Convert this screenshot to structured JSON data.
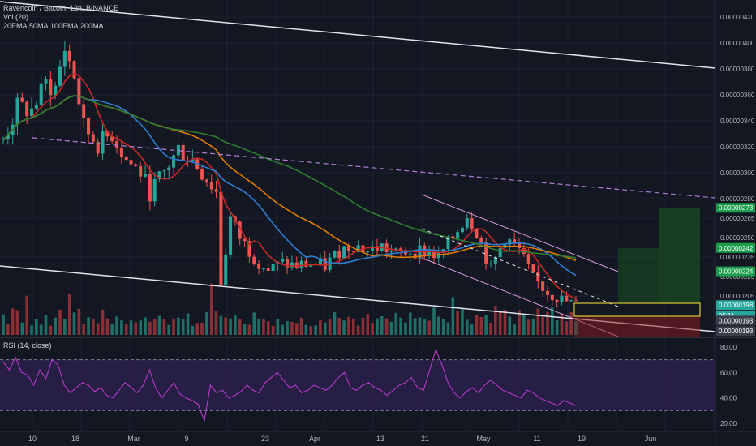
{
  "header": {
    "title": "Ravencoin / Bitcoin, 12h, BINANCE",
    "volume_label": "Vol (20)",
    "indicators_label": "20EMA,50MA,100EMA,200MA",
    "rsi_label": "RSI (14, close)"
  },
  "colors": {
    "background": "#131722",
    "up": "#26a69a",
    "down": "#ef5350",
    "ema20": "#c62828",
    "ma50": "#2e7dd1",
    "ema100": "#e07b00",
    "ma200": "#2e7d32",
    "rsi": "#b53ac6",
    "rsi_band": "#2a1f4a",
    "trendline": "#e0e3eb",
    "channel": "#d59bd9",
    "target_box": "#ffeb3b",
    "target_zone": "#1b5e20",
    "stop_zone": "#8e1b1b"
  },
  "chart_data": {
    "type": "candlestick",
    "x_axis_ticks": [
      "10",
      "18",
      "Mar",
      "9",
      "23",
      "Apr",
      "13",
      "21",
      "May",
      "11",
      "19",
      "Jun"
    ],
    "price_axis": {
      "ylim": [
        1.75e-06,
        4.3e-06
      ],
      "ticks": [
        "0.00000420",
        "0.00000400",
        "0.00000380",
        "0.00000360",
        "0.00000340",
        "0.00000320",
        "0.00000300",
        "0.00000280",
        "0.00000265",
        "0.00000250",
        "0.00000235",
        "0.00000220",
        "0.00000205"
      ],
      "tags": [
        {
          "label": "0.00000273",
          "value": 2.73e-06,
          "color": "#1b9e4b"
        },
        {
          "label": "0.00000242",
          "value": 2.42e-06,
          "color": "#1b9e4b"
        },
        {
          "label": "0.00000224",
          "value": 2.24e-06,
          "color": "#1b9e4b"
        },
        {
          "label": "0.00000198",
          "value": 1.98e-06,
          "color": "#26a69a"
        },
        {
          "label": "05:11",
          "value": 1.9e-06,
          "color": "#26a69a"
        },
        {
          "label": "0.00000193",
          "value": 1.86e-06,
          "color": "#3a3e4a"
        },
        {
          "label": "0.00000193",
          "value": 1.78e-06,
          "color": "#3a3e4a"
        }
      ]
    },
    "close_path": [
      [
        0,
        3.25e-06
      ],
      [
        3,
        3.5e-06
      ],
      [
        6,
        3.48e-06
      ],
      [
        9,
        3.68e-06
      ],
      [
        11,
        3.65e-06
      ],
      [
        13,
        3.96e-06
      ],
      [
        15,
        3.75e-06
      ],
      [
        17,
        3.35e-06
      ],
      [
        20,
        3.22e-06
      ],
      [
        23,
        3.3e-06
      ],
      [
        26,
        3.1e-06
      ],
      [
        29,
        3e-06
      ],
      [
        31,
        2.85e-06
      ],
      [
        34,
        3e-06
      ],
      [
        37,
        3.18e-06
      ],
      [
        40,
        3.1e-06
      ],
      [
        43,
        2.95e-06
      ],
      [
        45,
        2.85e-06
      ],
      [
        46,
        2.15e-06
      ],
      [
        48,
        2.65e-06
      ],
      [
        50,
        2.5e-06
      ],
      [
        53,
        2.35e-06
      ],
      [
        56,
        2.25e-06
      ],
      [
        59,
        2.3e-06
      ],
      [
        62,
        2.28e-06
      ],
      [
        65,
        2.3e-06
      ],
      [
        68,
        2.28e-06
      ],
      [
        71,
        2.4e-06
      ],
      [
        74,
        2.45e-06
      ],
      [
        77,
        2.4e-06
      ],
      [
        80,
        2.43e-06
      ],
      [
        83,
        2.37e-06
      ],
      [
        86,
        2.4e-06
      ],
      [
        89,
        2.4e-06
      ],
      [
        92,
        2.35e-06
      ],
      [
        95,
        2.5e-06
      ],
      [
        98,
        2.68e-06
      ],
      [
        100,
        2.55e-06
      ],
      [
        103,
        2.25e-06
      ],
      [
        106,
        2.5e-06
      ],
      [
        109,
        2.4e-06
      ],
      [
        112,
        2.18e-06
      ],
      [
        115,
        2.08e-06
      ],
      [
        118,
        2.02e-06
      ],
      [
        121,
        1.98e-06
      ]
    ],
    "volume_profile": [
      3,
      2,
      4,
      3,
      2,
      5,
      2,
      3,
      2,
      3,
      2,
      2,
      4,
      3,
      6,
      4,
      3,
      2,
      3,
      2,
      2,
      3,
      2,
      2,
      3,
      2,
      2,
      3,
      2,
      2,
      3,
      2,
      2,
      3,
      3,
      2,
      2,
      2,
      2,
      3,
      2,
      2,
      2,
      3,
      6,
      4,
      3,
      2,
      2,
      3,
      2,
      2,
      2,
      3,
      2,
      2,
      3,
      2,
      2,
      2,
      3,
      2,
      2,
      3,
      2,
      2,
      2,
      3,
      2,
      2,
      3,
      2,
      2,
      3,
      2,
      2,
      3,
      3,
      2,
      2,
      3,
      2,
      2,
      3,
      2,
      2,
      3,
      2,
      2,
      2,
      3,
      4,
      3,
      2,
      2,
      5,
      4,
      3,
      3,
      2,
      3,
      4,
      3,
      2,
      4,
      3,
      3,
      3,
      2,
      4,
      3,
      3,
      3,
      4,
      4,
      3,
      4,
      3,
      4,
      3,
      3
    ],
    "rsi": {
      "ylim": [
        15,
        85
      ],
      "levels": [
        70,
        30
      ],
      "ticks": [
        "80.00",
        "60.00",
        "40.00",
        "20.00"
      ],
      "values": [
        68,
        62,
        72,
        60,
        58,
        50,
        62,
        55,
        70,
        66,
        50,
        44,
        48,
        52,
        50,
        45,
        48,
        42,
        40,
        46,
        52,
        48,
        44,
        50,
        62,
        48,
        40,
        46,
        52,
        43,
        40,
        38,
        35,
        22,
        50,
        44,
        46,
        40,
        42,
        45,
        50,
        46,
        44,
        52,
        56,
        60,
        54,
        48,
        50,
        44,
        46,
        50,
        48,
        46,
        50,
        56,
        60,
        48,
        46,
        50,
        52,
        48,
        46,
        42,
        46,
        50,
        52,
        56,
        48,
        46,
        62,
        78,
        66,
        52,
        44,
        40,
        45,
        48,
        44,
        50,
        54,
        50,
        46,
        44,
        42,
        40,
        46,
        44,
        40,
        38,
        36,
        34,
        38,
        36,
        34
      ]
    }
  }
}
